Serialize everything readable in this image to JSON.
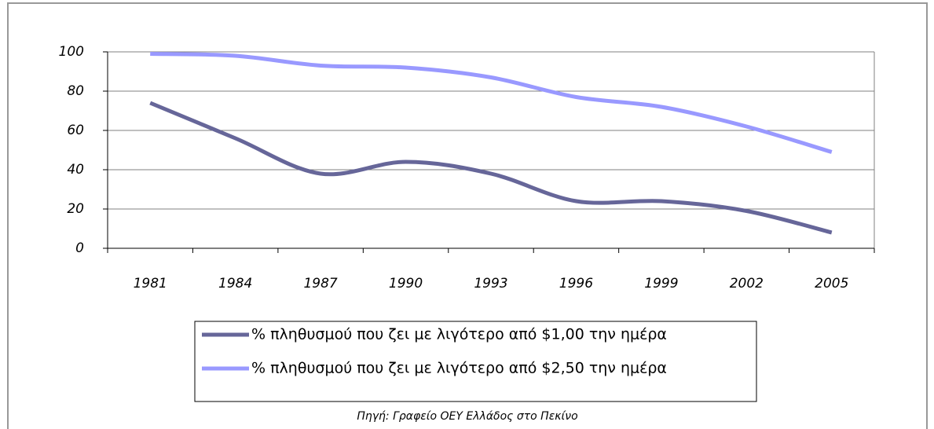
{
  "chart_data": {
    "type": "line",
    "categories": [
      "1981",
      "1984",
      "1987",
      "1990",
      "1993",
      "1996",
      "1999",
      "2002",
      "2005"
    ],
    "series": [
      {
        "name": "% πληθυσμού που ζει με λιγότερο από $1,00 την ημέρα",
        "color": "#666699",
        "values": [
          74,
          56,
          38,
          44,
          38,
          24,
          24,
          19,
          8
        ]
      },
      {
        "name": "% πληθυσμού που ζει με λιγότερο από $2,50 την ημέρα",
        "color": "#9999ff",
        "values": [
          99,
          98,
          93,
          92,
          87,
          77,
          72,
          62,
          49
        ]
      }
    ],
    "ylim": [
      0,
      100
    ],
    "yticks": [
      0,
      20,
      40,
      60,
      80,
      100
    ],
    "grid": true,
    "legend": "bottom",
    "source": "Πηγή: Γραφείο ΟΕΥ Ελλάδος στο Πεκίνο"
  }
}
